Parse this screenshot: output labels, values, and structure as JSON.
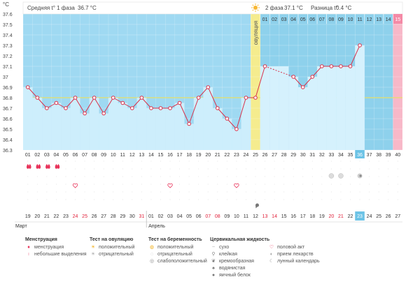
{
  "chart_data": {
    "type": "line",
    "yunit": "°C",
    "ylim": [
      36.3,
      37.6
    ],
    "yticks": [
      "37.6",
      "37.5",
      "37.4",
      "37.3",
      "37.2",
      "37.1",
      "37",
      "36.9",
      "36.8",
      "36.7",
      "36.6",
      "36.5",
      "36.4",
      "36.3"
    ],
    "cycle_days": [
      "01",
      "02",
      "03",
      "04",
      "05",
      "06",
      "07",
      "08",
      "09",
      "10",
      "11",
      "12",
      "13",
      "14",
      "15",
      "16",
      "17",
      "18",
      "19",
      "20",
      "21",
      "22",
      "23",
      "24",
      "25",
      "26",
      "27",
      "28",
      "29",
      "30",
      "31",
      "32",
      "33",
      "34",
      "35",
      "36",
      "37",
      "38",
      "39",
      "40"
    ],
    "dates": [
      "19",
      "20",
      "21",
      "22",
      "23",
      "24",
      "25",
      "26",
      "27",
      "28",
      "29",
      "30",
      "31",
      "01",
      "02",
      "03",
      "04",
      "05",
      "06",
      "07",
      "08",
      "09",
      "10",
      "11",
      "12",
      "13",
      "14",
      "15",
      "16",
      "17",
      "18",
      "19",
      "20",
      "21",
      "22",
      "23",
      "24",
      "25",
      "26",
      "27"
    ],
    "date_colors": [
      "n",
      "n",
      "n",
      "n",
      "n",
      "r",
      "r",
      "n",
      "n",
      "n",
      "n",
      "n",
      "r",
      "n",
      "n",
      "n",
      "n",
      "n",
      "n",
      "r",
      "r",
      "n",
      "n",
      "n",
      "n",
      "r",
      "r",
      "n",
      "n",
      "n",
      "n",
      "n",
      "r",
      "r",
      "n",
      "n",
      "n",
      "n",
      "n",
      "n"
    ],
    "temperatures": [
      36.9,
      36.8,
      36.7,
      36.75,
      36.7,
      36.8,
      36.65,
      36.8,
      36.65,
      36.8,
      36.75,
      36.7,
      36.8,
      36.7,
      36.7,
      36.7,
      36.75,
      36.55,
      36.8,
      36.9,
      36.7,
      36.6,
      36.5,
      36.8,
      36.8,
      37.1,
      null,
      null,
      37.0,
      36.9,
      37.0,
      37.1,
      37.1,
      37.1,
      37.1,
      37.3,
      null,
      null,
      null,
      null
    ],
    "phase2_days": [
      "01",
      "02",
      "03",
      "04",
      "05",
      "06",
      "07",
      "08",
      "09",
      "10",
      "11",
      "12",
      "13",
      "14",
      "15"
    ],
    "phase1_label": "Средняя t° 1 фаза",
    "phase1_value": "36.7 °C",
    "phase2_label": "2 фаза",
    "phase2_value": "37.1 °C",
    "diff_label": "Разница t°",
    "diff_value": "0.4 °C",
    "ovulation_label": "овуляция",
    "current_day": "36",
    "current_date": "23",
    "month1": "Март",
    "month2": "Апрель",
    "menstruation_days": [
      1,
      2,
      3,
      4
    ],
    "intercourse_days": [
      6,
      16,
      23
    ],
    "medication_days": [
      33,
      34
    ],
    "pregnancy_test_days": [
      36
    ],
    "cervical_days": [
      25
    ]
  },
  "legend": {
    "menstruation": {
      "title": "Менструация",
      "items": [
        "менструация",
        "небольшие выделения"
      ]
    },
    "ovulation_test": {
      "title": "Тест на овуляцию",
      "items": [
        "положительный",
        "отрицательный"
      ]
    },
    "pregnancy_test": {
      "title": "Тест на беременность",
      "items": [
        "положительный",
        "отрицательный",
        "слабоположительный"
      ]
    },
    "cervical": {
      "title": "Цервикальная жидкость",
      "items": [
        "сухо",
        "клейкая",
        "кремообразная",
        "водянистая",
        "яичный белок"
      ]
    },
    "other": {
      "items": [
        "половой акт",
        "прием лекарств",
        "лунный календарь"
      ]
    }
  },
  "colors": {
    "phase1_bg": "#9fd9f2",
    "phase2_bg": "#8ed1ec",
    "bar": "#cdeefc",
    "bar2": "#d5f1fd",
    "line": "#d9314a",
    "ovulation": "#f5ec8e",
    "current_day": "#f8b8c8",
    "coverline": "#e8e06a"
  }
}
